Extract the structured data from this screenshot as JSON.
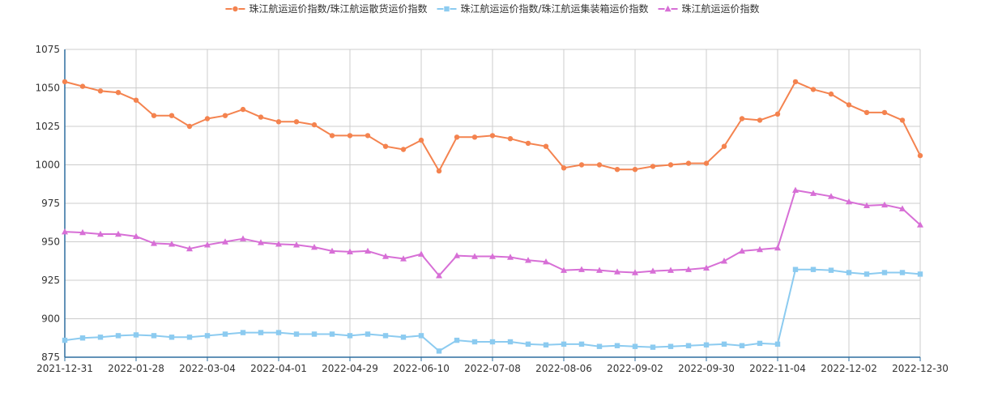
{
  "chart_data": {
    "type": "line",
    "x_tick_labels": [
      "2021-12-31",
      "2022-01-28",
      "2022-03-04",
      "2022-04-01",
      "2022-04-29",
      "2022-06-10",
      "2022-07-08",
      "2022-08-06",
      "2022-09-02",
      "2022-09-30",
      "2022-11-04",
      "2022-12-02",
      "2022-12-30"
    ],
    "ylim": [
      875,
      1075
    ],
    "yticks": [
      875,
      900,
      925,
      950,
      975,
      1000,
      1025,
      1050,
      1075
    ],
    "grid": true,
    "legend_position": "top-center",
    "series": [
      {
        "name": "珠江航运运价指数/珠江航运散货运价指数",
        "color": "#f4834f",
        "marker": "circle",
        "values": [
          1054,
          1051,
          1048,
          1047,
          1042,
          1032,
          1032,
          1025,
          1030,
          1032,
          1036,
          1031,
          1028,
          1028,
          1026,
          1019,
          1019,
          1019,
          1012,
          1010,
          1016,
          996,
          1018,
          1018,
          1019,
          1017,
          1014,
          1012,
          998,
          1000,
          1000,
          997,
          997,
          999,
          1000,
          1001,
          1001,
          1012,
          1030,
          1029,
          1033,
          1054,
          1049,
          1046,
          1039,
          1034,
          1034,
          1029,
          1006
        ]
      },
      {
        "name": "珠江航运运价指数/珠江航运集装箱运价指数",
        "color": "#8ccbf0",
        "marker": "square",
        "values": [
          886,
          887.5,
          888,
          889,
          889.5,
          889,
          888,
          888,
          889,
          890,
          891,
          891,
          891,
          890,
          890,
          890,
          889,
          890,
          889,
          888,
          889,
          879,
          886,
          885,
          885,
          885,
          883.5,
          883,
          883.5,
          883.5,
          882,
          882.5,
          882,
          881.5,
          882,
          882.5,
          883,
          883.5,
          882.5,
          884,
          883.5,
          932,
          932,
          931.5,
          930,
          929,
          930,
          930,
          929
        ]
      },
      {
        "name": "珠江航运运价指数",
        "color": "#d76fd6",
        "marker": "triangle",
        "values": [
          956.5,
          956,
          955,
          955,
          953.5,
          949,
          948.5,
          945.5,
          948,
          950,
          952,
          949.5,
          948.5,
          948,
          946.5,
          944,
          943.5,
          944,
          940.5,
          939,
          942,
          928,
          941,
          940.5,
          940.5,
          940,
          938,
          937,
          931.5,
          932,
          931.5,
          930.5,
          930,
          931,
          931.5,
          932,
          933,
          937.5,
          944,
          945,
          946,
          983.5,
          981.5,
          979.5,
          976,
          973.5,
          974,
          971.5,
          961
        ]
      }
    ]
  }
}
